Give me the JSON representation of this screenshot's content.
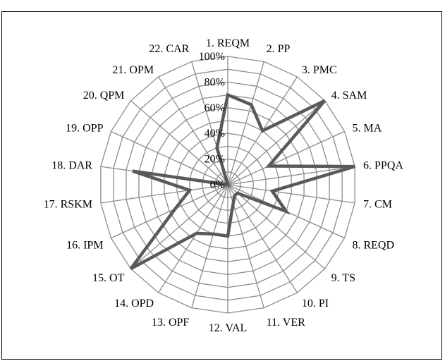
{
  "chart_data": {
    "type": "radar",
    "title": "",
    "categories": [
      "1. REQM",
      "2. PP",
      "3. PMC",
      "4. SAM",
      "5. MA",
      "6. PPQA",
      "7. CM",
      "8. REQD",
      "9. TS",
      "10. PI",
      "11. VER",
      "12. VAL",
      "13. OPF",
      "14. OPD",
      "15. OT",
      "16. IPM",
      "17. RSKM",
      "18. DAR",
      "19. OPP",
      "20. QPM",
      "21. OPM",
      "22. CAR"
    ],
    "series": [
      {
        "values": [
          70,
          65,
          50,
          100,
          35,
          100,
          35,
          50,
          10,
          10,
          15,
          40,
          40,
          45,
          100,
          45,
          30,
          75,
          0,
          0,
          0,
          30
        ]
      }
    ],
    "rlim": [
      0,
      100
    ],
    "rticks": [
      0,
      20,
      40,
      60,
      80,
      100
    ],
    "rtick_labels": [
      "0%",
      "20%",
      "40%",
      "60%",
      "80%",
      "100%"
    ],
    "grid": true,
    "legend": "none",
    "colors": {
      "series": "#595959",
      "grid": "#8c8c8c",
      "axis": "#8c8c8c"
    }
  }
}
